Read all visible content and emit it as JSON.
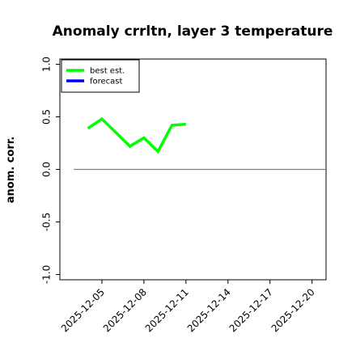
{
  "chart_data": {
    "type": "line",
    "title": "Anomaly crrltn, layer 3 temperature",
    "xlabel": "",
    "ylabel": "anom. corr.",
    "xlim": [
      "2025-12-02",
      "2025-12-21"
    ],
    "ylim": [
      -1.05,
      1.05
    ],
    "yticks": [
      -1.0,
      -0.5,
      0.0,
      0.5,
      1.0
    ],
    "ytick_labels": [
      "-1.0",
      "-0.5",
      "0.0",
      "0.5",
      "1.0"
    ],
    "xticks": [
      "2025-12-05",
      "2025-12-08",
      "2025-12-11",
      "2025-12-14",
      "2025-12-17",
      "2025-12-20"
    ],
    "xtick_labels": [
      "2025-12-05",
      "2025-12-08",
      "2025-12-11",
      "2025-12-14",
      "2025-12-17",
      "2025-12-20"
    ],
    "highlighted_xtick": "2025-12-11",
    "highlight_color": "#228b22",
    "grid": false,
    "legend_position": "top-left",
    "reference_line": {
      "y": 0.0,
      "x_start": "2025-12-03",
      "x_end": "2025-12-21",
      "color": "#808080"
    },
    "series": [
      {
        "name": "best est.",
        "color": "#00ff00",
        "x": [
          "2025-12-04",
          "2025-12-05",
          "2025-12-06",
          "2025-12-07",
          "2025-12-08",
          "2025-12-09",
          "2025-12-10",
          "2025-12-11"
        ],
        "y": [
          0.39,
          0.48,
          0.35,
          0.22,
          0.3,
          0.17,
          0.42,
          0.43
        ]
      },
      {
        "name": "forecast",
        "color": "#0000ff",
        "x": [],
        "y": []
      }
    ]
  }
}
